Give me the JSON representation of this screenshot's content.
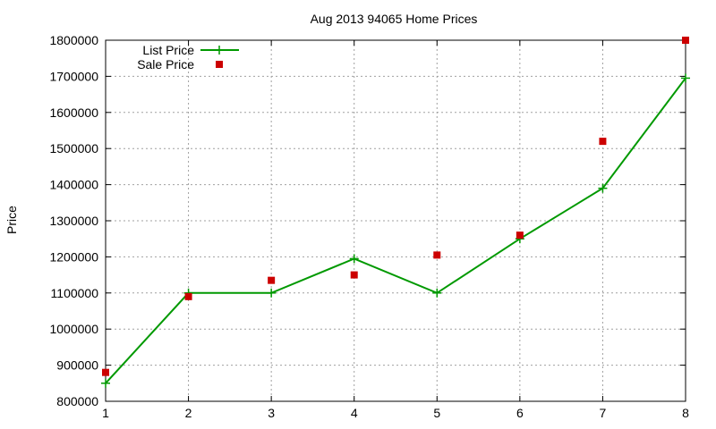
{
  "chart_data": {
    "type": "line",
    "title": "Aug 2013 94065 Home Prices",
    "xlabel": "",
    "ylabel": "Price",
    "xlim": [
      1,
      8
    ],
    "ylim": [
      800000,
      1800000
    ],
    "x_ticks": [
      1,
      2,
      3,
      4,
      5,
      6,
      7,
      8
    ],
    "y_ticks": [
      800000,
      900000,
      1000000,
      1100000,
      1200000,
      1300000,
      1400000,
      1500000,
      1600000,
      1700000,
      1800000
    ],
    "grid": true,
    "legend_position": "top-left",
    "x": [
      1,
      2,
      3,
      4,
      5,
      6,
      7,
      8
    ],
    "series": [
      {
        "name": "List Price",
        "style": "line-with-plus-markers",
        "color": "#009900",
        "values": [
          850000,
          1100000,
          1100000,
          1195000,
          1100000,
          1250000,
          1390000,
          1695000
        ]
      },
      {
        "name": "Sale Price",
        "style": "square-markers",
        "color": "#cc0000",
        "values": [
          880000,
          1090000,
          1135000,
          1150000,
          1205000,
          1260000,
          1520000,
          1800000
        ]
      }
    ]
  }
}
